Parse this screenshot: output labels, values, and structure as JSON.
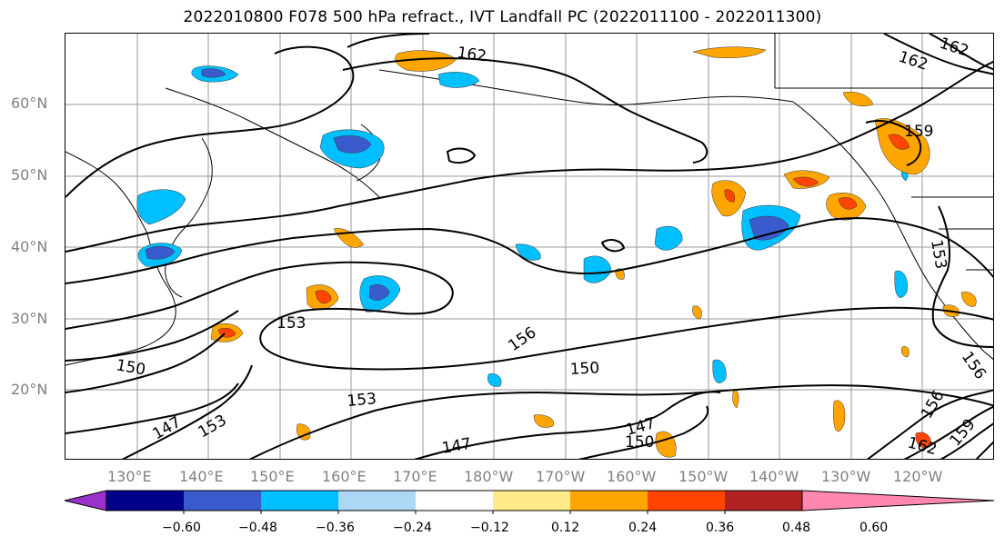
{
  "title": "2022010800 F078 500 hPa refract., IVT Landfall PC (2022011100 - 2022011300)",
  "map": {
    "lat_labels": [
      "60°N",
      "50°N",
      "40°N",
      "30°N",
      "20°N"
    ],
    "lon_labels": [
      "130°E",
      "140°E",
      "150°E",
      "160°E",
      "170°E",
      "180°W",
      "170°W",
      "160°W",
      "150°W",
      "140°W",
      "130°W",
      "120°W"
    ],
    "contour_labels": [
      "162",
      "162",
      "162",
      "159",
      "153",
      "153",
      "156",
      "150",
      "150",
      "153",
      "153",
      "147",
      "147",
      "147",
      "150",
      "156",
      "156",
      "159",
      "162"
    ]
  },
  "colorbar": {
    "ticks": [
      "−0.60",
      "−0.48",
      "−0.36",
      "−0.24",
      "−0.12",
      "0.12",
      "0.24",
      "0.36",
      "0.48",
      "0.60"
    ],
    "colors": [
      "#9932cc",
      "#00008b",
      "#3a5bcd",
      "#00bfff",
      "#add8f5",
      "#ffffff",
      "#ffeb8a",
      "#ffa500",
      "#ff4500",
      "#b22222",
      "#ff88b0"
    ]
  }
}
